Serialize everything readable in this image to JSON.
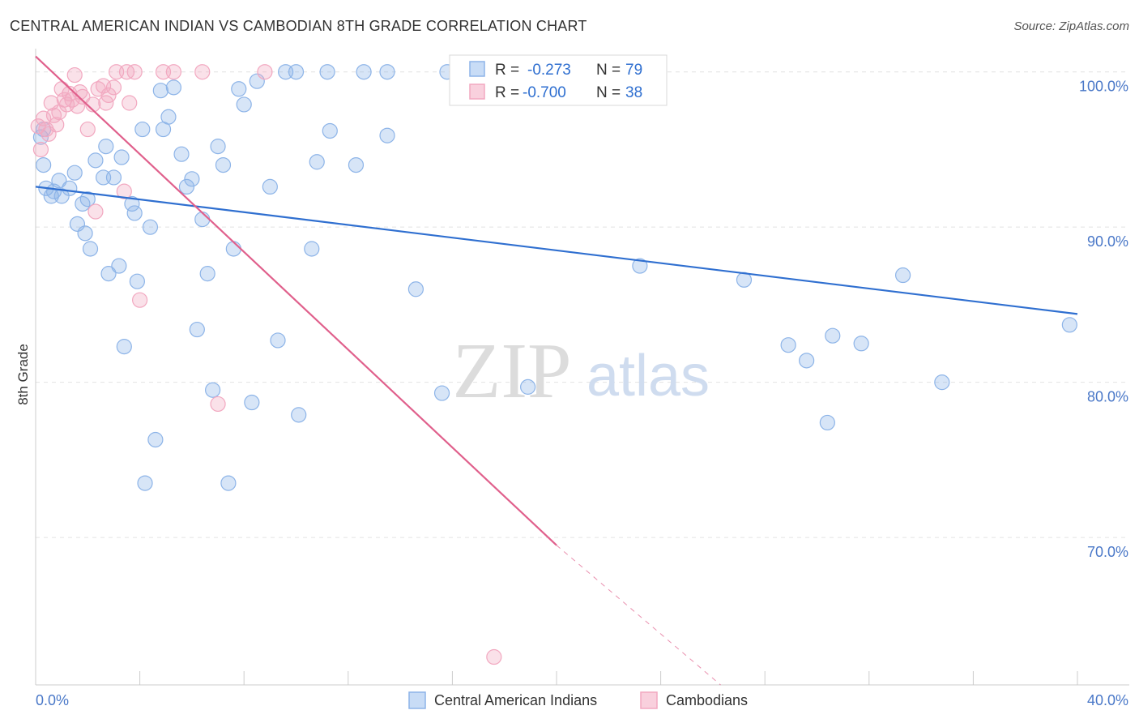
{
  "header": {
    "title": "CENTRAL AMERICAN INDIAN VS CAMBODIAN 8TH GRADE CORRELATION CHART",
    "source": "Source: ZipAtlas.com"
  },
  "watermark": {
    "zip": "ZIP",
    "atlas": "atlas"
  },
  "stats_box": {
    "rows": [
      {
        "r_label": "R =",
        "r_value": "-0.273",
        "n_label": "N =",
        "n_value": "79",
        "color": "#8db4e8"
      },
      {
        "r_label": "R =",
        "r_value": "-0.700",
        "n_label": "N =",
        "n_value": "38",
        "color": "#f2a8c0"
      }
    ]
  },
  "legend": {
    "items": [
      {
        "label": "Central American Indians",
        "color": "#8db4e8"
      },
      {
        "label": "Cambodians",
        "color": "#f2a8c0"
      }
    ]
  },
  "chart_data": {
    "type": "scatter",
    "title": "CENTRAL AMERICAN INDIAN VS CAMBODIAN 8TH GRADE CORRELATION CHART",
    "xlabel": "",
    "ylabel": "8th Grade",
    "xlim": [
      0,
      40
    ],
    "ylim": [
      60.5,
      101.5
    ],
    "x_tick_labels": [
      "0.0%",
      "40.0%"
    ],
    "y_ticks": [
      70,
      80,
      90,
      100
    ],
    "y_tick_labels": [
      "70.0%",
      "80.0%",
      "90.0%",
      "100.0%"
    ],
    "grid": true,
    "legend_position": "bottom-center",
    "series": [
      {
        "name": "Central American Indians",
        "color": "#8db4e8",
        "line_color": "#2f6fd0",
        "r": -0.273,
        "n": 79,
        "trend": {
          "x": [
            0,
            40
          ],
          "y": [
            92.6,
            84.4
          ]
        },
        "points": [
          [
            0.3,
            96.3
          ],
          [
            0.3,
            94.0
          ],
          [
            0.4,
            92.5
          ],
          [
            0.6,
            92.0
          ],
          [
            0.7,
            92.3
          ],
          [
            0.9,
            93.0
          ],
          [
            1.0,
            92.0
          ],
          [
            1.3,
            92.5
          ],
          [
            1.5,
            93.5
          ],
          [
            1.6,
            90.2
          ],
          [
            1.8,
            91.5
          ],
          [
            1.9,
            89.6
          ],
          [
            2.1,
            88.6
          ],
          [
            2.3,
            94.3
          ],
          [
            2.6,
            93.2
          ],
          [
            2.7,
            95.2
          ],
          [
            2.8,
            87.0
          ],
          [
            3.0,
            93.2
          ],
          [
            3.2,
            87.5
          ],
          [
            3.3,
            94.5
          ],
          [
            3.4,
            82.3
          ],
          [
            3.7,
            91.5
          ],
          [
            3.8,
            90.9
          ],
          [
            3.9,
            86.5
          ],
          [
            4.1,
            96.3
          ],
          [
            4.2,
            73.5
          ],
          [
            4.4,
            90.0
          ],
          [
            4.6,
            76.3
          ],
          [
            4.8,
            98.8
          ],
          [
            4.9,
            96.3
          ],
          [
            5.1,
            97.1
          ],
          [
            5.3,
            99.0
          ],
          [
            5.6,
            94.7
          ],
          [
            5.8,
            92.6
          ],
          [
            6.0,
            93.1
          ],
          [
            6.2,
            83.4
          ],
          [
            6.4,
            90.5
          ],
          [
            6.6,
            87.0
          ],
          [
            6.8,
            79.5
          ],
          [
            7.0,
            95.2
          ],
          [
            7.2,
            94.0
          ],
          [
            7.4,
            73.5
          ],
          [
            7.6,
            88.6
          ],
          [
            7.8,
            98.9
          ],
          [
            8.0,
            97.9
          ],
          [
            8.3,
            78.7
          ],
          [
            8.5,
            99.4
          ],
          [
            9.0,
            92.6
          ],
          [
            9.3,
            82.7
          ],
          [
            9.6,
            100.0
          ],
          [
            10.0,
            100.0
          ],
          [
            10.1,
            77.9
          ],
          [
            10.6,
            88.6
          ],
          [
            10.8,
            94.2
          ],
          [
            11.2,
            100.0
          ],
          [
            11.3,
            96.2
          ],
          [
            12.3,
            94.0
          ],
          [
            12.6,
            100.0
          ],
          [
            13.5,
            100.0
          ],
          [
            13.5,
            95.9
          ],
          [
            14.6,
            86.0
          ],
          [
            15.6,
            79.3
          ],
          [
            15.8,
            100.0
          ],
          [
            18.9,
            79.7
          ],
          [
            19.1,
            100.0
          ],
          [
            22.3,
            100.0
          ],
          [
            23.0,
            100.0
          ],
          [
            23.2,
            87.5
          ],
          [
            27.2,
            86.6
          ],
          [
            28.9,
            82.4
          ],
          [
            29.6,
            81.4
          ],
          [
            30.4,
            77.4
          ],
          [
            30.6,
            83.0
          ],
          [
            31.7,
            82.5
          ],
          [
            33.3,
            86.9
          ],
          [
            34.8,
            80.0
          ],
          [
            39.7,
            83.7
          ],
          [
            0.2,
            95.8
          ],
          [
            2.0,
            91.8
          ]
        ]
      },
      {
        "name": "Cambodians",
        "color": "#f2a8c0",
        "line_color": "#e0608c",
        "r": -0.7,
        "n": 38,
        "trend": {
          "x": [
            0,
            20
          ],
          "y": [
            101.0,
            69.5
          ]
        },
        "trend_dashed": {
          "x": [
            20,
            26.3
          ],
          "y": [
            69.5,
            60.5
          ]
        },
        "points": [
          [
            0.1,
            96.5
          ],
          [
            0.2,
            95.0
          ],
          [
            0.3,
            97.0
          ],
          [
            0.4,
            96.3
          ],
          [
            0.5,
            96.0
          ],
          [
            0.6,
            98.0
          ],
          [
            0.7,
            97.2
          ],
          [
            0.8,
            96.6
          ],
          [
            0.9,
            97.4
          ],
          [
            1.0,
            98.9
          ],
          [
            1.1,
            98.2
          ],
          [
            1.2,
            97.9
          ],
          [
            1.3,
            98.6
          ],
          [
            1.4,
            98.2
          ],
          [
            1.5,
            99.8
          ],
          [
            1.6,
            97.8
          ],
          [
            1.7,
            98.7
          ],
          [
            1.8,
            98.4
          ],
          [
            2.0,
            96.3
          ],
          [
            2.2,
            97.9
          ],
          [
            2.3,
            91.0
          ],
          [
            2.4,
            98.9
          ],
          [
            2.6,
            99.1
          ],
          [
            2.7,
            98.0
          ],
          [
            2.8,
            98.5
          ],
          [
            3.0,
            99.0
          ],
          [
            3.1,
            100.0
          ],
          [
            3.4,
            92.3
          ],
          [
            3.5,
            100.0
          ],
          [
            3.6,
            98.0
          ],
          [
            3.8,
            100.0
          ],
          [
            4.0,
            85.3
          ],
          [
            4.9,
            100.0
          ],
          [
            5.3,
            100.0
          ],
          [
            6.4,
            100.0
          ],
          [
            7.0,
            78.6
          ],
          [
            8.8,
            100.0
          ],
          [
            17.6,
            62.3
          ]
        ]
      }
    ]
  }
}
